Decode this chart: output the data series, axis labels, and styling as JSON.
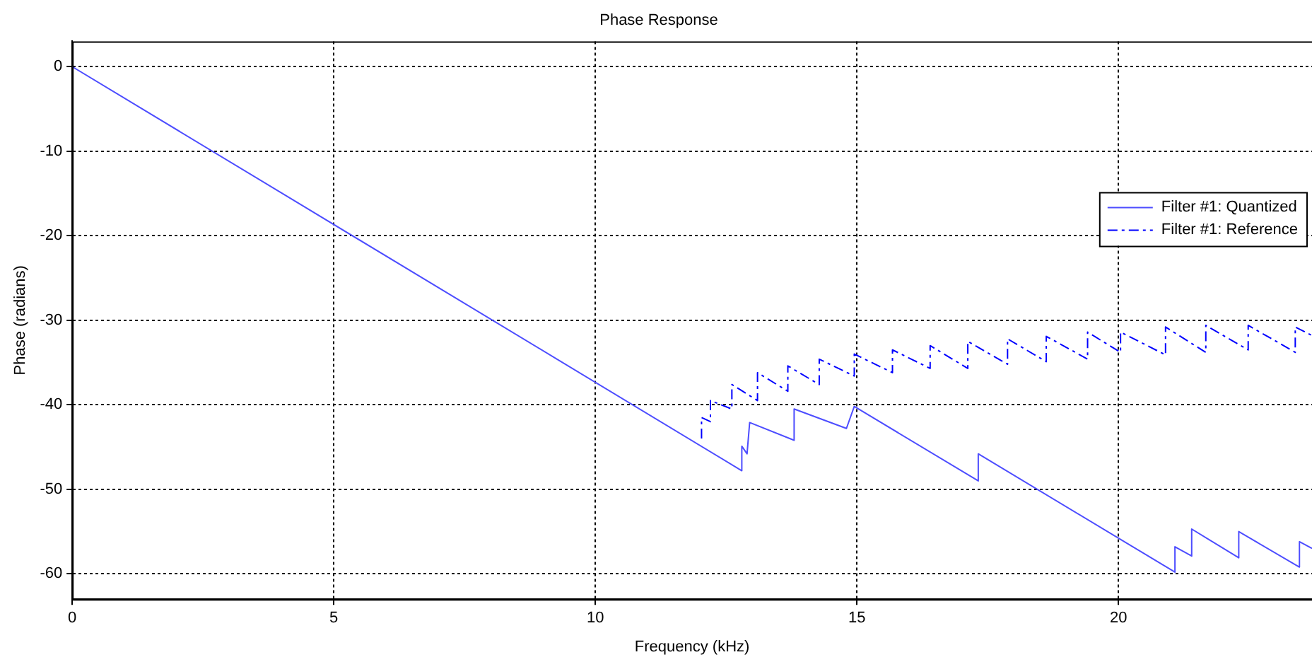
{
  "chart_data": {
    "type": "line",
    "title": "Phase Response",
    "xlabel": "Frequency (kHz)",
    "ylabel": "Phase (radians)",
    "xlim": [
      0,
      23.7
    ],
    "xticks": [
      0,
      5,
      10,
      15,
      20
    ],
    "ylim": [
      -63,
      3
    ],
    "yticks": [
      0,
      -10,
      -20,
      -30,
      -40,
      -50,
      -60
    ],
    "grid": true,
    "legend": "right",
    "marker": "none",
    "series": [
      {
        "name": "Filter #1: Quantized",
        "color": "#4d4dff",
        "line_style": "solid",
        "x": [
          0,
          12.8,
          12.8,
          12.9,
          12.95,
          13.8,
          13.8,
          14.8,
          14.95,
          17.32,
          17.32,
          21.08,
          21.08,
          21.4,
          21.4,
          22.3,
          22.3,
          23.46,
          23.46,
          23.7
        ],
        "values": [
          0,
          -47.8,
          -44.9,
          -45.8,
          -42.1,
          -44.2,
          -40.5,
          -42.8,
          -40.2,
          -49,
          -45.8,
          -59.8,
          -56.8,
          -57.9,
          -54.7,
          -58.1,
          -55,
          -59.2,
          -56.2,
          -57
        ]
      },
      {
        "name": "Filter #1: Reference",
        "color": "#0000ff",
        "line_style": "dashed",
        "x": [
          12.03,
          12.03,
          12.2,
          12.2,
          12.61,
          12.61,
          13.1,
          13.1,
          13.68,
          13.68,
          14.28,
          14.28,
          14.95,
          14.95,
          15.68,
          15.68,
          16.4,
          16.4,
          17.12,
          17.12,
          17.88,
          17.88,
          18.62,
          18.62,
          19.41,
          19.41,
          20.04,
          20.04,
          20.9,
          20.9,
          21.67,
          21.67,
          22.48,
          22.48,
          23.38,
          23.38,
          23.7
        ],
        "values": [
          -44,
          -41.5,
          -42,
          -39.5,
          -40.5,
          -37.6,
          -39.5,
          -36.2,
          -38.4,
          -35.4,
          -37.6,
          -34.6,
          -36.6,
          -34,
          -36.2,
          -33.5,
          -35.7,
          -33,
          -35.7,
          -32.5,
          -35.2,
          -32.2,
          -34.9,
          -31.9,
          -34.6,
          -31.4,
          -33.8,
          -31.4,
          -34.1,
          -30.8,
          -33.8,
          -30.6,
          -33.5,
          -30.6,
          -33.8,
          -30.8,
          -31.8
        ]
      }
    ]
  }
}
